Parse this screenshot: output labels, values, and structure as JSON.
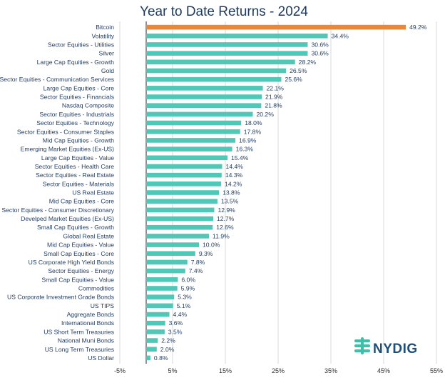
{
  "chart_data": {
    "type": "bar",
    "orientation": "horizontal",
    "title": "Year to Date Returns - 2024",
    "xlim": [
      -5,
      55
    ],
    "x_ticks": [
      "-5%",
      "5%",
      "15%",
      "25%",
      "35%",
      "45%",
      "55%"
    ],
    "x_tick_values": [
      -5,
      5,
      15,
      25,
      35,
      45,
      55
    ],
    "grid": "vertical",
    "colors": {
      "highlight": "#e8883a",
      "default": "#4fc8b8"
    },
    "categories": [
      "Bitcoin",
      "Volatility",
      "Sector Equities - Utilities",
      "Silver",
      "Large Cap Equities - Growth",
      "Gold",
      "Sector Equities - Communication Services",
      "Large Cap Equities - Core",
      "Sector Equities - Financials",
      "Nasdaq Composite",
      "Sector Equities - Industrials",
      "Sector Equities - Technology",
      "Sector Equities - Consumer Staples",
      "Mid Cap Equities - Growth",
      "Emerging Market Equities (Ex-US)",
      "Large Cap Equities - Value",
      "Sector Equities - Health Care",
      "Sector Equities - Real Estate",
      "Sector Equities - Materials",
      "US Real Estate",
      "Mid Cap Equities - Core",
      "Sector Equities - Consumer Discretionary",
      "Develped Market Equities (Ex-US)",
      "Small Cap Equities - Growth",
      "Global Real Estate",
      "Mid Cap Equities - Value",
      "Small Cap Equities - Core",
      "US Corporate High Yield Bonds",
      "Sector Equities - Energy",
      "Small Cap Equities - Value",
      "Commodities",
      "US Corporate Investment Grade Bonds",
      "US TIPS",
      "Aggregate Bonds",
      "International Bonds",
      "US Short Term Treasuries",
      "National Muni Bonds",
      "US Long Term Treasuries",
      "US Dollar"
    ],
    "values": [
      49.2,
      34.4,
      30.6,
      30.6,
      28.2,
      26.5,
      25.6,
      22.1,
      21.9,
      21.8,
      20.2,
      18.0,
      17.8,
      16.9,
      16.3,
      15.4,
      14.4,
      14.3,
      14.2,
      13.8,
      13.5,
      12.9,
      12.7,
      12.6,
      11.9,
      10.0,
      9.3,
      7.8,
      7.4,
      6.0,
      5.9,
      5.3,
      5.1,
      4.4,
      3.6,
      3.5,
      2.2,
      2.0,
      0.8
    ],
    "value_labels": [
      "49.2%",
      "34.4%",
      "30.6%",
      "30.6%",
      "28.2%",
      "26.5%",
      "25.6%",
      "22.1%",
      "21.9%",
      "21.8%",
      "20.2%",
      "18.0%",
      "17.8%",
      "16.9%",
      "16.3%",
      "15.4%",
      "14.4%",
      "14.3%",
      "14.2%",
      "13.8%",
      "13.5%",
      "12.9%",
      "12.7%",
      "12.6%",
      "11.9%",
      "10.0%",
      "9.3%",
      "7.8%",
      "7.4%",
      "6.0%",
      "5.9%",
      "5.3%",
      "5.1%",
      "4.4%",
      "3.6%",
      "3.5%",
      "2.2%",
      "2.0%",
      "0.8%"
    ]
  },
  "logo": {
    "text": "NYDIG",
    "icon": "nydig-logo-icon",
    "color": "#1f4e79",
    "icon_color": "#3cc0a8"
  }
}
